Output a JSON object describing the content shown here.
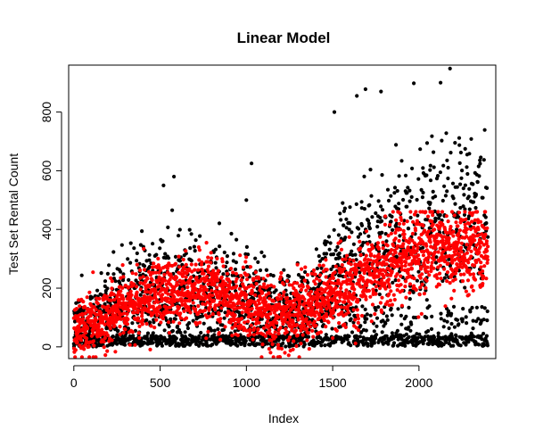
{
  "chart_data": {
    "type": "scatter",
    "title": "Linear Model",
    "xlabel": "Index",
    "ylabel": "Test Set Rental Count",
    "xlim": [
      -30,
      2445
    ],
    "ylim": [
      -40,
      960
    ],
    "x_ticks": [
      0,
      500,
      1000,
      1500,
      2000
    ],
    "y_ticks": [
      0,
      200,
      400,
      600,
      800
    ],
    "x_tick_labels": [
      "0",
      "500",
      "1000",
      "1500",
      "2000"
    ],
    "y_tick_labels": [
      "0",
      "200",
      "400",
      "600",
      "800"
    ],
    "grid": false,
    "legend": "none",
    "n_points": 2400,
    "series": [
      {
        "color": "#000000",
        "values_summary": "observed counts, range 1 to about 950",
        "keypoints": [
          [
            2180,
            948
          ],
          [
            1970,
            898
          ],
          [
            2125,
            900
          ],
          [
            1690,
            878
          ],
          [
            1780,
            870
          ],
          [
            1640,
            855
          ],
          [
            1510,
            800
          ],
          [
            1030,
            625
          ],
          [
            580,
            580
          ],
          [
            520,
            550
          ],
          [
            1000,
            500
          ]
        ]
      },
      {
        "color": "#ff0000",
        "values_summary": "linear model predictions, range about -30 to 460",
        "keypoints": [
          [
            0,
            60
          ],
          [
            200,
            150
          ],
          [
            500,
            230
          ],
          [
            700,
            280
          ],
          [
            1000,
            200
          ],
          [
            1300,
            130
          ],
          [
            1500,
            210
          ],
          [
            1800,
            320
          ],
          [
            2000,
            280
          ],
          [
            2300,
            200
          ],
          [
            2400,
            220
          ]
        ]
      }
    ]
  },
  "colors": {
    "observed": "#000000",
    "predicted": "#ff0000"
  }
}
